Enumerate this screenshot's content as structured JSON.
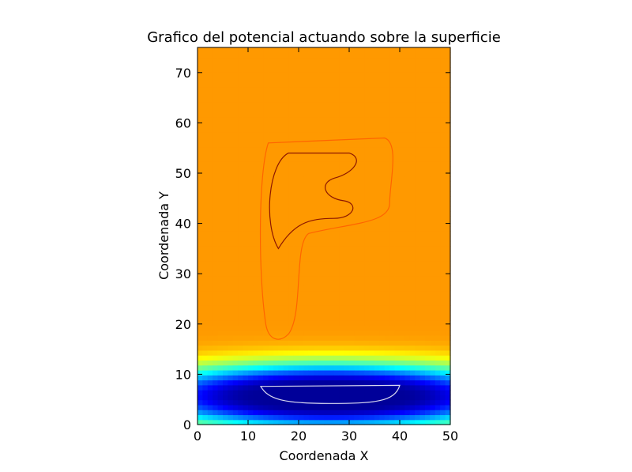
{
  "chart_data": {
    "type": "heatmap",
    "title": "Grafico del potencial actuando sobre la superficie",
    "xlabel": "Coordenada X",
    "ylabel": "Coordenada Y",
    "xlim": [
      0,
      50
    ],
    "ylim": [
      0,
      75
    ],
    "xticks": [
      0,
      10,
      20,
      30,
      40,
      50
    ],
    "yticks": [
      0,
      10,
      20,
      30,
      40,
      50,
      60,
      70
    ],
    "colormap": "jet",
    "value_range": [
      -1,
      1
    ],
    "background_level": 0.45,
    "regions": [
      {
        "name": "P-stem",
        "shape": "rect",
        "x": [
          12,
          18
        ],
        "y": [
          18,
          56
        ],
        "level": 0.85
      },
      {
        "name": "P-bowl-outer",
        "shape": "rect",
        "x": [
          14,
          38
        ],
        "y": [
          38,
          56
        ],
        "level": 0.82
      },
      {
        "name": "P-bowl-core",
        "shape": "ellipse",
        "x": [
          16,
          32
        ],
        "y": [
          40,
          54
        ],
        "level": 0.95
      },
      {
        "name": "P-bowl-notch",
        "shape": "rect",
        "x": [
          27,
          38
        ],
        "y": [
          44,
          49
        ],
        "level": 0.65
      },
      {
        "name": "pedestal",
        "shape": "rect",
        "x": [
          11,
          40.5
        ],
        "y": [
          13,
          20
        ],
        "level": 0.62
      },
      {
        "name": "plate",
        "shape": "ellipse",
        "x": [
          12,
          40
        ],
        "y": [
          3.5,
          8
        ],
        "level": -0.95
      }
    ],
    "contour_colors": [
      "#7a0000",
      "#ff5a00",
      "#ffffff"
    ],
    "grid": false,
    "legend": "none"
  }
}
